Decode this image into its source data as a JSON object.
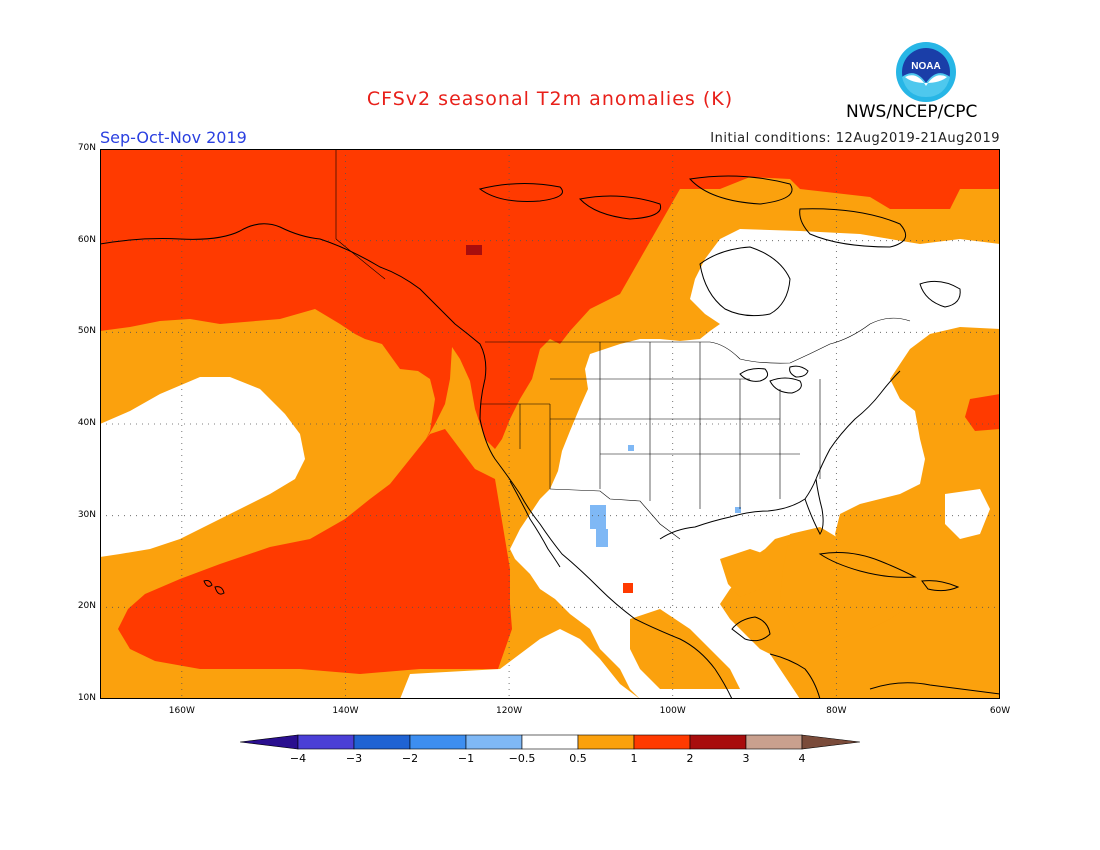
{
  "title": "CFSv2 seasonal T2m anomalies (K)",
  "season": "Sep-Oct-Nov 2019",
  "initial_conditions": "Initial conditions: 12Aug2019-21Aug2019",
  "agency": "NWS/NCEP/CPC",
  "logo_text": "NOAA",
  "map": {
    "lon_range": [
      -170,
      -60
    ],
    "lat_range": [
      10,
      70
    ],
    "lat_ticks": [
      {
        "value": 70,
        "label": "70N"
      },
      {
        "value": 60,
        "label": "60N"
      },
      {
        "value": 50,
        "label": "50N"
      },
      {
        "value": 40,
        "label": "40N"
      },
      {
        "value": 30,
        "label": "30N"
      },
      {
        "value": 20,
        "label": "20N"
      },
      {
        "value": 10,
        "label": "10N"
      }
    ],
    "lon_ticks": [
      {
        "value": -160,
        "label": "160W"
      },
      {
        "value": -140,
        "label": "140W"
      },
      {
        "value": -120,
        "label": "120W"
      },
      {
        "value": -100,
        "label": "100W"
      },
      {
        "value": -80,
        "label": "80W"
      },
      {
        "value": -60,
        "label": "60W"
      }
    ],
    "gridlines": "dotted"
  },
  "colorbar": {
    "labels": [
      "−4",
      "−3",
      "−2",
      "−1",
      "−0.5",
      "0.5",
      "1",
      "2",
      "3",
      "4"
    ],
    "colors": [
      "#2a0f8f",
      "#4b3fd6",
      "#1f63d3",
      "#3d8ef0",
      "#7fb8f5",
      "#ffffff",
      "#fba10d",
      "#ff3a00",
      "#a80d0d",
      "#c9a08e",
      "#7a4b3a"
    ]
  },
  "colors": {
    "white": "#ffffff",
    "orange": "#fba10d",
    "red": "#ff3a00",
    "darkred": "#a80d0d",
    "lightblue": "#7fb8f5"
  }
}
